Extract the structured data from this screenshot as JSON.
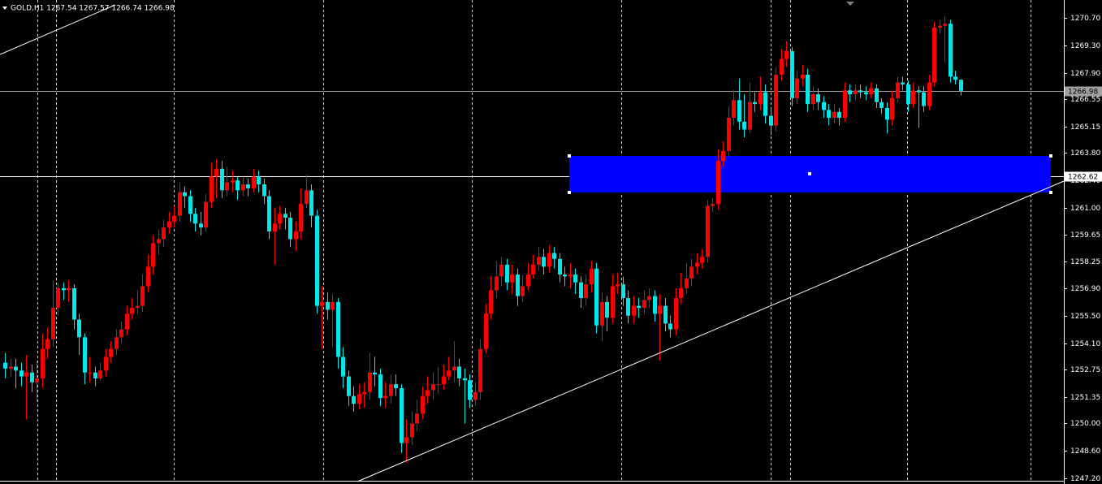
{
  "chart_data": {
    "type": "candlestick",
    "title": "GOLD,H1  1267.54 1267.57 1266.74 1266.98",
    "up_color": "#ff0000",
    "down_color": "#00e8e8",
    "ylim": [
      1246.91,
      1271.61
    ],
    "yticks": [
      {
        "value": 1270.7,
        "label": "1270.70"
      },
      {
        "value": 1269.3,
        "label": "1269.30"
      },
      {
        "value": 1267.9,
        "label": "1267.90"
      },
      1266.55,
      1265.15,
      {
        "value": 1263.8,
        "label": "1263.80"
      },
      {
        "value": 1262.4,
        "label": "1262.40"
      },
      {
        "value": 1261,
        "label": "1261.00"
      },
      1259.65,
      1258.25,
      {
        "value": 1256.9,
        "label": "1256.90"
      },
      {
        "value": 1255.5,
        "label": "1255.50"
      },
      {
        "value": 1254.1,
        "label": "1254.10"
      },
      1252.75,
      1251.35,
      {
        "value": 1250,
        "label": "1250.00"
      },
      {
        "value": 1248.6,
        "label": "1248.60"
      },
      {
        "value": 1247.2,
        "label": "1247.20"
      }
    ],
    "price_lines": [
      {
        "value": 1266.98,
        "color": "#a0a0a0"
      },
      {
        "value": 1262.62,
        "color": "#ffffff"
      }
    ],
    "open": [
      1253.1,
      1252.8,
      1252.9,
      1252.7,
      1252.4,
      1252.6,
      1252.1,
      1252.3,
      1253.8,
      1254.3,
      1255.9,
      1256.9,
      1256.8,
      1256.9,
      1255.3,
      1254.4,
      1252.6,
      1252.6,
      1252.3,
      1252.7,
      1253.4,
      1253.8,
      1254.4,
      1254.8,
      1255.6,
      1255.9,
      1256.0,
      1257.0,
      1258.0,
      1259.2,
      1259.4,
      1260.0,
      1260.3,
      1260.6,
      1261.8,
      1261.6,
      1260.7,
      1260.2,
      1260.0,
      1261.3,
      1262.6,
      1263.0,
      1261.9,
      1262.3,
      1262.4,
      1261.9,
      1262.2,
      1262.0,
      1262.6,
      1262.2,
      1261.6,
      1259.8,
      1260.2,
      1260.7,
      1260.5,
      1259.4,
      1259.8,
      1261.2,
      1261.9,
      1260.6,
      1256.0,
      1256.2,
      1255.8,
      1256.2,
      1253.4,
      1252.4,
      1251.4,
      1251.0,
      1251.5,
      1251.6,
      1252.6,
      1252.5,
      1251.3,
      1251.4,
      1252.0,
      1251.8,
      1249.0,
      1249.3,
      1250.0,
      1250.5,
      1251.4,
      1251.7,
      1252.0,
      1252.0,
      1252.4,
      1252.7,
      1252.9,
      1252.3,
      1252.2,
      1251.2,
      1251.6,
      1253.8,
      1255.6,
      1256.8,
      1257.5,
      1258.1,
      1257.2,
      1257.6,
      1256.5,
      1257.0,
      1257.6,
      1258.1,
      1258.5,
      1258.0,
      1258.7,
      1258.4,
      1257.6,
      1257.5,
      1257.6,
      1257.2,
      1256.4,
      1257.1,
      1257.9,
      1255.0,
      1256.2,
      1255.4,
      1257.0,
      1257.1,
      1256.4,
      1255.5,
      1256.0,
      1255.9,
      1256.3,
      1256.5,
      1255.6,
      1256.0,
      1255.1,
      1254.8,
      1256.4,
      1256.9,
      1257.4,
      1258.0,
      1258.2,
      1258.5,
      1261.1,
      1261.2,
      1263.4,
      1263.9,
      1265.6,
      1266.5,
      1265.4,
      1265.0,
      1266.4,
      1266.3,
      1266.9,
      1265.7,
      1265.2,
      1267.8,
      1268.6,
      1269.0,
      1266.6,
      1267.6,
      1267.8,
      1266.3,
      1266.8,
      1266.4,
      1266.0,
      1265.6,
      1265.9,
      1265.6,
      1267.0,
      1266.8,
      1267.0,
      1266.9,
      1266.8,
      1267.1,
      1266.4,
      1266.1,
      1265.5,
      1266.6,
      1267.4,
      1267.3,
      1266.3,
      1267.0,
      1266.9,
      1266.2,
      1267.4,
      1270.2,
      1270.3,
      1270.4,
      1267.7,
      1267.54
    ],
    "high": [
      1253.6,
      1253.3,
      1253.3,
      1253.1,
      1253.5,
      1253.0,
      1253.2,
      1254.6,
      1254.9,
      1257.3,
      1257.2,
      1257.2,
      1257.3,
      1257.1,
      1255.6,
      1254.6,
      1253.4,
      1252.9,
      1253.1,
      1253.8,
      1254.2,
      1254.8,
      1255.2,
      1256.0,
      1256.4,
      1256.8,
      1257.6,
      1258.6,
      1259.6,
      1259.9,
      1260.4,
      1260.8,
      1261.1,
      1262.3,
      1262.1,
      1261.9,
      1261.0,
      1260.8,
      1261.7,
      1263.3,
      1263.5,
      1263.4,
      1263.1,
      1262.9,
      1262.6,
      1262.6,
      1262.5,
      1263.0,
      1262.9,
      1262.5,
      1261.9,
      1261.0,
      1261.1,
      1261.0,
      1260.8,
      1260.3,
      1262.0,
      1262.7,
      1262.2,
      1260.9,
      1257.0,
      1256.7,
      1256.6,
      1256.4,
      1253.9,
      1252.7,
      1251.9,
      1252.0,
      1252.1,
      1253.6,
      1253.4,
      1252.8,
      1252.1,
      1252.5,
      1252.5,
      1252.0,
      1250.2,
      1250.6,
      1251.2,
      1251.9,
      1252.4,
      1252.6,
      1252.9,
      1253.0,
      1253.4,
      1254.2,
      1253.3,
      1252.8,
      1252.5,
      1252.1,
      1254.3,
      1256.1,
      1257.5,
      1258.3,
      1258.5,
      1258.4,
      1258.1,
      1257.9,
      1257.6,
      1258.2,
      1258.6,
      1259.0,
      1258.9,
      1259.1,
      1259.0,
      1258.7,
      1258.0,
      1258.2,
      1257.9,
      1257.5,
      1257.6,
      1258.3,
      1258.2,
      1256.7,
      1256.5,
      1257.6,
      1257.7,
      1257.5,
      1256.8,
      1256.5,
      1256.4,
      1256.8,
      1256.9,
      1256.8,
      1256.6,
      1256.4,
      1255.5,
      1256.9,
      1257.7,
      1258.2,
      1258.4,
      1258.7,
      1258.9,
      1261.4,
      1261.5,
      1264.0,
      1264.4,
      1266.2,
      1267.0,
      1267.6,
      1266.8,
      1267.4,
      1266.9,
      1267.7,
      1267.3,
      1266.1,
      1268.2,
      1269.1,
      1269.5,
      1269.2,
      1268.0,
      1268.3,
      1268.1,
      1267.2,
      1267.1,
      1266.7,
      1266.3,
      1266.3,
      1266.1,
      1267.4,
      1267.3,
      1267.3,
      1267.3,
      1267.2,
      1267.4,
      1267.3,
      1266.6,
      1266.4,
      1267.0,
      1267.7,
      1267.7,
      1267.5,
      1267.4,
      1267.2,
      1267.2,
      1267.8,
      1270.5,
      1270.6,
      1270.8,
      1270.6,
      1268.0,
      1267.57
    ],
    "low": [
      1252.3,
      1252.4,
      1251.8,
      1251.9,
      1250.2,
      1251.6,
      1251.1,
      1251.8,
      1253.3,
      1253.9,
      1255.5,
      1256.3,
      1256.2,
      1254.8,
      1253.5,
      1252.0,
      1252.1,
      1251.9,
      1252.2,
      1252.4,
      1253.1,
      1253.5,
      1254.1,
      1254.5,
      1255.3,
      1255.6,
      1255.7,
      1256.7,
      1257.6,
      1258.6,
      1259.0,
      1259.7,
      1260.0,
      1260.3,
      1261.0,
      1260.3,
      1259.8,
      1259.6,
      1259.8,
      1261.0,
      1261.5,
      1261.5,
      1261.6,
      1261.8,
      1261.4,
      1261.6,
      1261.6,
      1261.8,
      1261.8,
      1261.2,
      1259.4,
      1258.1,
      1259.9,
      1259.9,
      1259.0,
      1258.8,
      1259.4,
      1261.0,
      1260.0,
      1255.6,
      1253.8,
      1255.3,
      1253.9,
      1252.8,
      1251.8,
      1250.9,
      1250.6,
      1250.7,
      1250.8,
      1251.2,
      1251.9,
      1250.9,
      1250.8,
      1251.0,
      1251.4,
      1248.5,
      1248.0,
      1248.9,
      1249.6,
      1250.2,
      1251.0,
      1251.2,
      1251.5,
      1251.7,
      1252.2,
      1252.1,
      1251.9,
      1250.0,
      1250.8,
      1250.9,
      1251.2,
      1253.6,
      1255.3,
      1256.4,
      1257.0,
      1256.8,
      1256.6,
      1256.0,
      1256.2,
      1256.8,
      1257.4,
      1257.8,
      1257.6,
      1257.7,
      1257.9,
      1257.2,
      1257.0,
      1256.9,
      1256.6,
      1255.9,
      1256.0,
      1256.7,
      1254.6,
      1254.2,
      1254.7,
      1255.1,
      1256.6,
      1256.0,
      1255.1,
      1255.1,
      1255.4,
      1255.6,
      1255.9,
      1255.2,
      1253.2,
      1254.7,
      1254.4,
      1254.5,
      1256.1,
      1256.6,
      1257.0,
      1257.6,
      1257.9,
      1258.2,
      1260.8,
      1260.9,
      1263.1,
      1263.6,
      1265.2,
      1265.0,
      1264.6,
      1264.8,
      1265.9,
      1266.0,
      1265.3,
      1264.7,
      1264.9,
      1267.5,
      1268.2,
      1266.2,
      1266.3,
      1267.2,
      1265.9,
      1266.0,
      1266.0,
      1265.6,
      1265.2,
      1265.3,
      1265.2,
      1265.4,
      1266.4,
      1266.5,
      1266.6,
      1266.5,
      1266.6,
      1266.1,
      1265.8,
      1264.8,
      1265.2,
      1266.4,
      1267.0,
      1265.9,
      1266.1,
      1265.1,
      1265.9,
      1266.0,
      1267.2,
      1269.9,
      1268.4,
      1267.4,
      1267.3,
      1266.74
    ],
    "close": [
      1252.8,
      1252.9,
      1252.7,
      1252.4,
      1252.6,
      1252.1,
      1252.3,
      1253.8,
      1254.3,
      1255.9,
      1256.9,
      1256.8,
      1256.9,
      1255.3,
      1254.4,
      1252.6,
      1252.6,
      1252.3,
      1252.7,
      1253.4,
      1253.8,
      1254.4,
      1254.8,
      1255.6,
      1255.9,
      1256.0,
      1257.0,
      1258.0,
      1259.2,
      1259.4,
      1260.0,
      1260.3,
      1260.6,
      1261.8,
      1261.6,
      1260.7,
      1260.2,
      1260.0,
      1261.3,
      1262.6,
      1263.0,
      1261.9,
      1262.3,
      1262.4,
      1261.9,
      1262.2,
      1262.0,
      1262.6,
      1262.2,
      1261.6,
      1259.8,
      1260.2,
      1260.7,
      1260.5,
      1259.4,
      1259.8,
      1261.2,
      1261.9,
      1260.6,
      1256.0,
      1256.2,
      1255.8,
      1256.2,
      1253.4,
      1252.4,
      1251.4,
      1251.0,
      1251.5,
      1251.6,
      1252.6,
      1252.5,
      1251.3,
      1251.4,
      1252.0,
      1251.8,
      1249.0,
      1249.3,
      1250.0,
      1250.5,
      1251.4,
      1251.7,
      1252.0,
      1252.0,
      1252.4,
      1252.7,
      1252.9,
      1252.3,
      1252.2,
      1251.2,
      1251.6,
      1253.8,
      1255.6,
      1256.8,
      1257.5,
      1258.1,
      1257.2,
      1257.6,
      1256.5,
      1257.0,
      1257.6,
      1258.1,
      1258.5,
      1258.0,
      1258.7,
      1258.4,
      1257.6,
      1257.5,
      1257.6,
      1257.2,
      1256.4,
      1257.1,
      1257.9,
      1255.0,
      1256.2,
      1255.4,
      1257.0,
      1257.1,
      1256.4,
      1255.5,
      1256.0,
      1255.9,
      1256.3,
      1256.5,
      1255.6,
      1256.0,
      1255.1,
      1254.8,
      1256.4,
      1256.9,
      1257.4,
      1258.0,
      1258.2,
      1258.5,
      1261.1,
      1261.2,
      1263.4,
      1263.9,
      1265.6,
      1266.5,
      1265.4,
      1265.0,
      1266.4,
      1266.3,
      1266.9,
      1265.7,
      1265.2,
      1267.8,
      1268.6,
      1269.0,
      1266.6,
      1267.6,
      1267.8,
      1266.3,
      1266.8,
      1266.4,
      1266.0,
      1265.6,
      1265.9,
      1265.6,
      1267.0,
      1266.8,
      1267.0,
      1266.9,
      1266.8,
      1267.1,
      1266.4,
      1266.1,
      1265.5,
      1266.6,
      1267.4,
      1267.3,
      1266.3,
      1267.0,
      1266.9,
      1266.2,
      1267.4,
      1270.2,
      1270.3,
      1270.4,
      1267.7,
      1267.54,
      1266.98
    ]
  }
}
